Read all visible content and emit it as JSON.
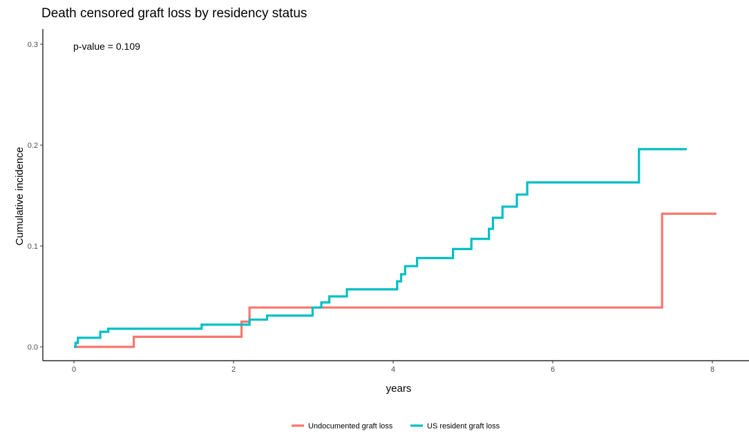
{
  "chart_data": {
    "type": "line",
    "step": true,
    "title": "Death censored graft loss by residency status",
    "xlabel": "years",
    "ylabel": "Cumulative incidence",
    "annotation": "p-value = 0.109",
    "xlim": [
      -0.4,
      8.45
    ],
    "ylim": [
      -0.015,
      0.315
    ],
    "x_ticks": [
      0,
      2,
      4,
      6,
      8
    ],
    "x_tick_labels": [
      "0",
      "2",
      "4",
      "6",
      "8"
    ],
    "y_ticks": [
      0.0,
      0.1,
      0.2,
      0.3
    ],
    "y_tick_labels": [
      "0.0",
      "0.1",
      "0.2",
      "0.3"
    ],
    "grid": false,
    "legend_position": "bottom",
    "series": [
      {
        "name": "Undocumented graft loss",
        "color": "#F8766D",
        "x": [
          0,
          0.75,
          2.1,
          2.2,
          7.37,
          8.05
        ],
        "y": [
          0,
          0.01,
          0.025,
          0.039,
          0.132,
          0.132
        ]
      },
      {
        "name": "US resident graft loss",
        "color": "#00BFC4",
        "x": [
          0,
          0.02,
          0.05,
          0.33,
          0.43,
          1.6,
          2.2,
          2.42,
          2.99,
          3.1,
          3.2,
          3.42,
          4.05,
          4.1,
          4.15,
          4.3,
          4.75,
          4.98,
          5.2,
          5.25,
          5.37,
          5.55,
          5.68,
          7.08,
          7.68
        ],
        "y": [
          0,
          0.004,
          0.009,
          0.015,
          0.018,
          0.022,
          0.027,
          0.031,
          0.039,
          0.044,
          0.05,
          0.057,
          0.065,
          0.072,
          0.08,
          0.088,
          0.097,
          0.107,
          0.117,
          0.128,
          0.139,
          0.151,
          0.163,
          0.196,
          0.196
        ]
      }
    ]
  }
}
